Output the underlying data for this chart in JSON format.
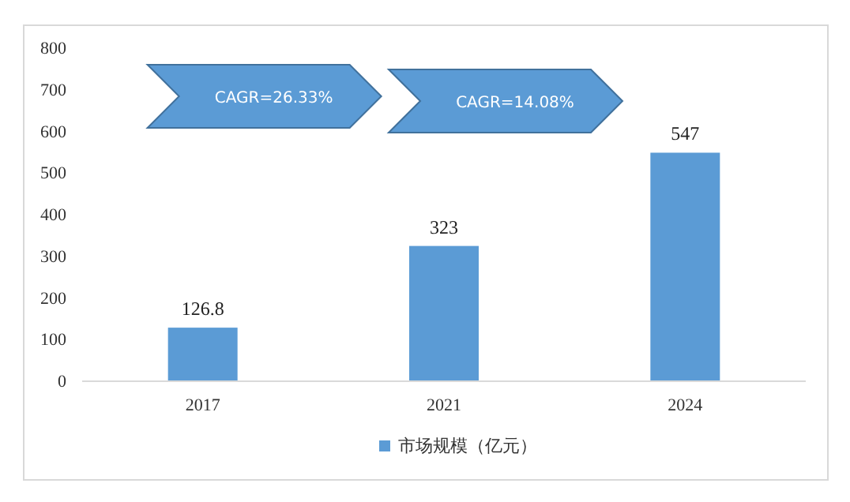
{
  "chart_data": {
    "type": "bar",
    "categories": [
      "2017",
      "2021",
      "2024"
    ],
    "series": [
      {
        "name": "市场规模（亿元）",
        "color": "#5b9bd5",
        "values": [
          126.8,
          323,
          547
        ]
      }
    ],
    "ylim": [
      0,
      800
    ],
    "yticks": [
      0,
      100,
      200,
      300,
      400,
      500,
      600,
      700,
      800
    ],
    "data_labels": true,
    "grid": false,
    "legend": "bottom",
    "annotations": [
      "CAGR=26.33%",
      "CAGR=14.08%"
    ]
  }
}
